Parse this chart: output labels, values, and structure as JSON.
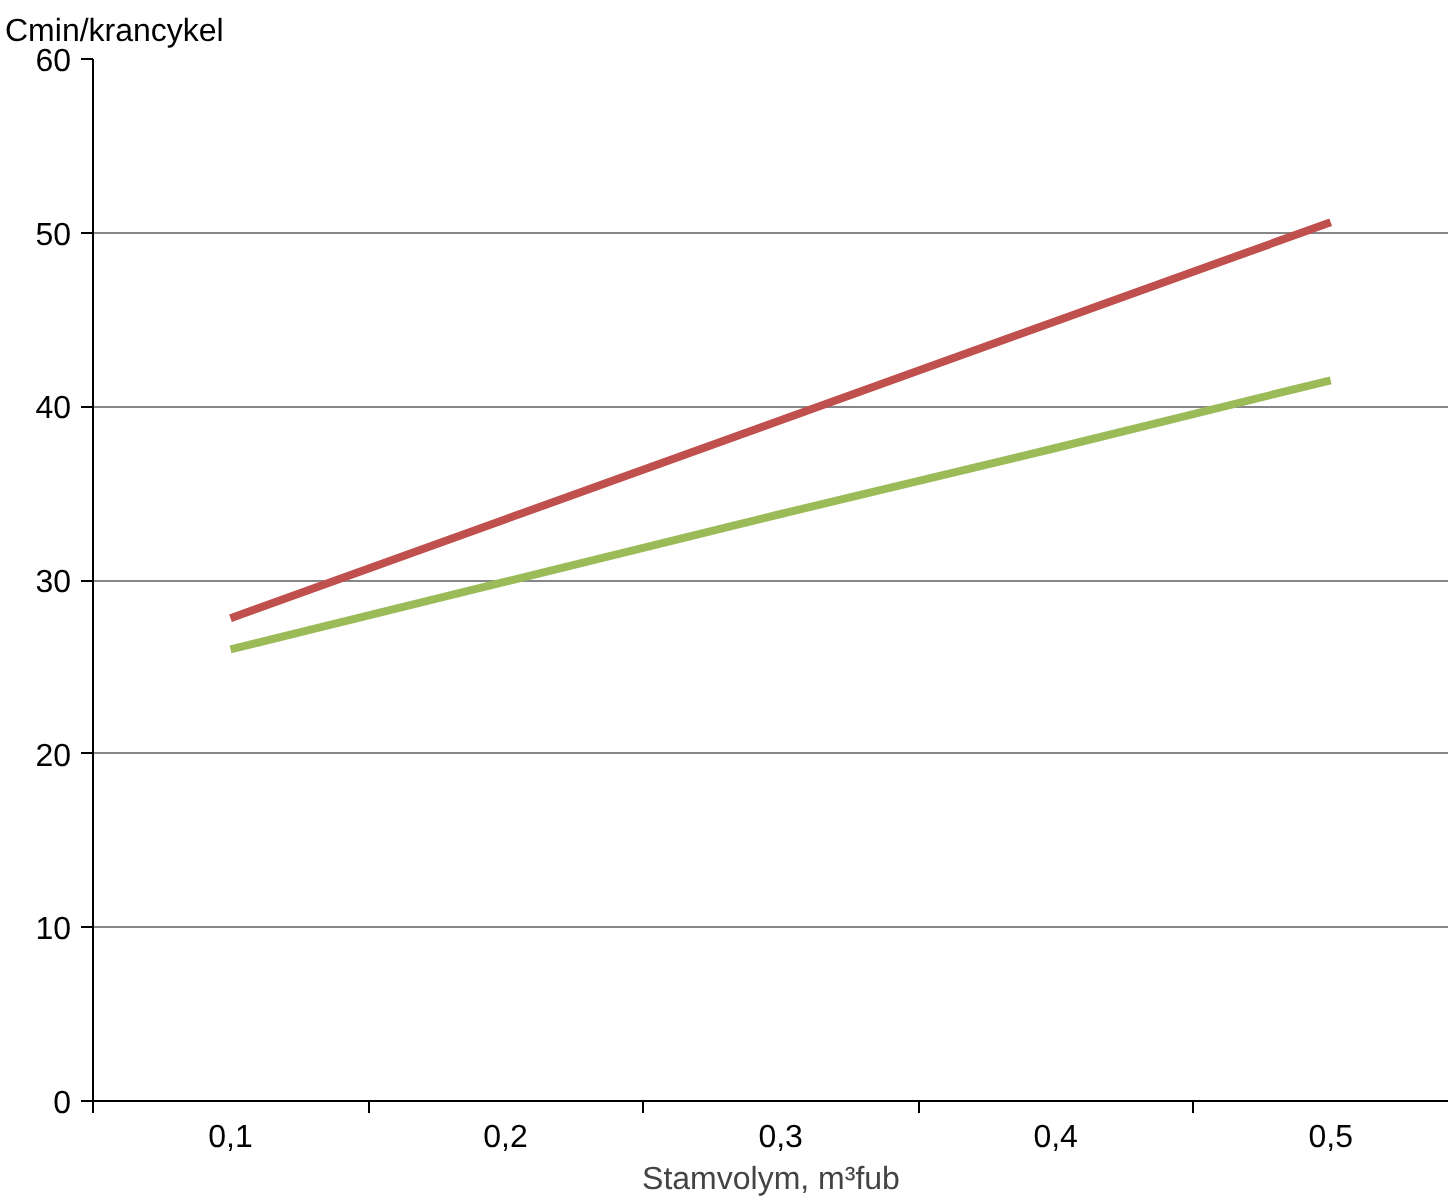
{
  "chart_data": {
    "type": "line",
    "ylabel": "Cmin/krancykel",
    "xlabel": "Stamvolym, m³fub",
    "categories": [
      "0,1",
      "0,2",
      "0,3",
      "0,4",
      "0,5"
    ],
    "series": [
      {
        "color": "#c0504d",
        "values": [
          27.8,
          33.5,
          39.2,
          44.9,
          50.6
        ]
      },
      {
        "color": "#9bbb59",
        "values": [
          26,
          29.9,
          33.8,
          37.6,
          41.5
        ]
      }
    ],
    "ylim": [
      0,
      60
    ],
    "yticks": [
      0,
      10,
      20,
      30,
      40,
      50,
      60
    ],
    "grid": "y",
    "marker": "none",
    "line_style": "solid"
  }
}
